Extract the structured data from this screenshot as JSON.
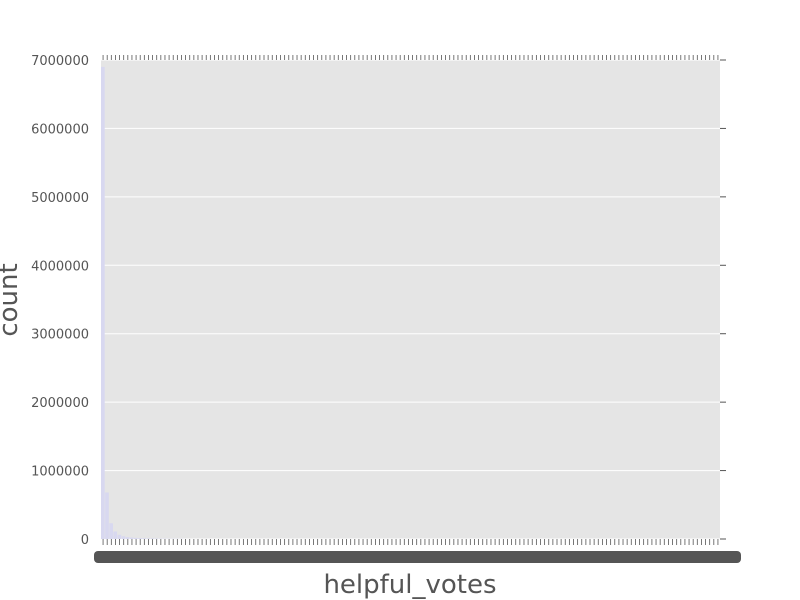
{
  "chart_data": {
    "type": "bar",
    "title": "",
    "xlabel": "helpful_votes",
    "ylabel": "count",
    "ylim": [
      0,
      7000000
    ],
    "yticks": [
      0,
      1000000,
      2000000,
      3000000,
      4000000,
      5000000,
      6000000,
      7000000
    ],
    "ytick_labels": [
      "0",
      "1000000",
      "2000000",
      "3000000",
      "4000000",
      "5000000",
      "6000000",
      "7000000"
    ],
    "grid": true,
    "categories_count": 150,
    "categories_note_visible": false,
    "values": [
      6900000,
      680000,
      230000,
      110000,
      62000,
      40000,
      28000,
      21000,
      16000,
      13000,
      10500,
      8700,
      7300,
      6200,
      5300,
      4600,
      4000,
      3500,
      3100,
      2800
    ],
    "colors": {
      "background": "#e5e5e5",
      "bar": "#d8d8f0",
      "grid": "#ffffff",
      "tick": "#555555"
    }
  }
}
